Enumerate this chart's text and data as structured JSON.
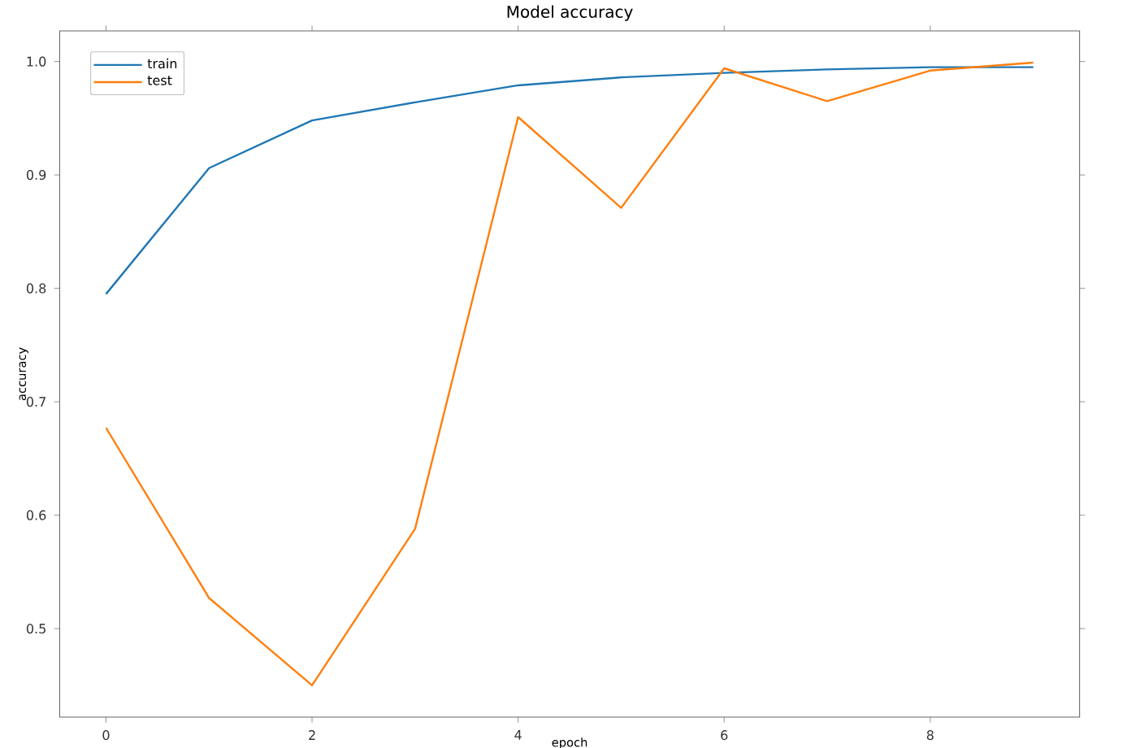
{
  "chart_data": {
    "type": "line",
    "title": "Model accuracy",
    "xlabel": "epoch",
    "ylabel": "accuracy",
    "x": [
      0,
      1,
      2,
      3,
      4,
      5,
      6,
      7,
      8,
      9
    ],
    "series": [
      {
        "name": "train",
        "color": "#1f77b4",
        "values": [
          0.795,
          0.906,
          0.948,
          0.964,
          0.979,
          0.986,
          0.99,
          0.993,
          0.995,
          0.995
        ]
      },
      {
        "name": "test",
        "color": "#ff7f0e",
        "values": [
          0.677,
          0.527,
          0.45,
          0.588,
          0.951,
          0.871,
          0.994,
          0.965,
          0.992,
          0.999
        ]
      }
    ],
    "xlim": [
      -0.45,
      9.45
    ],
    "ylim": [
      0.422,
      1.027
    ],
    "xticks": [
      0,
      2,
      4,
      6,
      8
    ],
    "yticks": [
      {
        "value": 0.5,
        "label": "0.5"
      },
      {
        "value": 0.6,
        "label": "0.6"
      },
      {
        "value": 0.7,
        "label": "0.7"
      },
      {
        "value": 0.8,
        "label": "0.8"
      },
      {
        "value": 0.9,
        "label": "0.9"
      },
      {
        "value": 1.0,
        "label": "1.0"
      }
    ],
    "legend": "top left",
    "grid": false
  }
}
